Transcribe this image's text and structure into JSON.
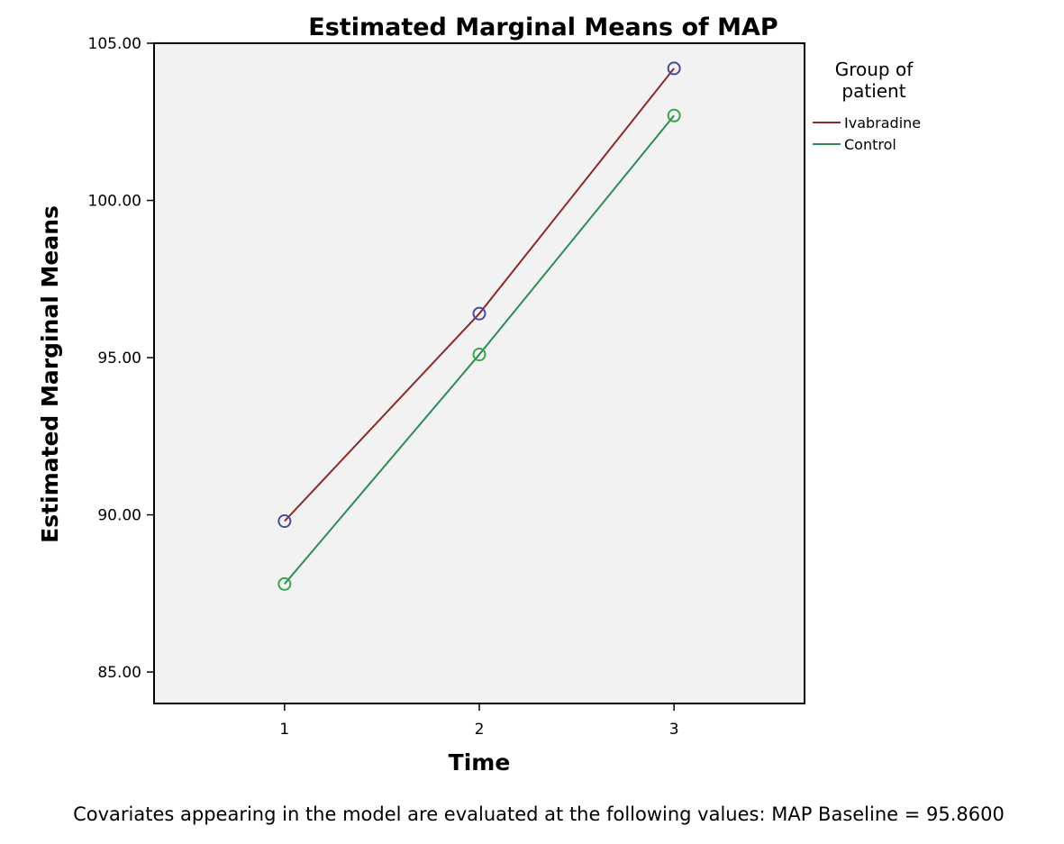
{
  "chart_data": {
    "type": "line",
    "title": "Estimated Marginal Means of MAP",
    "xlabel": "Time",
    "ylabel": "Estimated Marginal Means",
    "x": [
      1,
      2,
      3
    ],
    "x_tick_labels": [
      "1",
      "2",
      "3"
    ],
    "xlim": [
      0.33,
      3.67
    ],
    "ylim": [
      84.0,
      105.0
    ],
    "y_ticks": [
      85.0,
      90.0,
      95.0,
      100.0,
      105.0
    ],
    "y_tick_labels": [
      "85.00",
      "90.00",
      "95.00",
      "100.00",
      "105.00"
    ],
    "grid": false,
    "plot_background": "#f2f2f2",
    "legend": {
      "title": "Group of patient",
      "placement": "right"
    },
    "series": [
      {
        "name": "Ivabradine",
        "values": [
          89.8,
          96.4,
          104.2
        ],
        "line_color": "#8b2a2a",
        "marker_color": "#4a4a9a",
        "marker": "open-circle"
      },
      {
        "name": "Control",
        "values": [
          87.8,
          95.1,
          102.7
        ],
        "line_color": "#2e8b57",
        "marker_color": "#3aa646",
        "marker": "open-circle"
      }
    ],
    "footnote": "Covariates appearing in the model are evaluated at the following values: MAP Baseline = 95.8600"
  }
}
